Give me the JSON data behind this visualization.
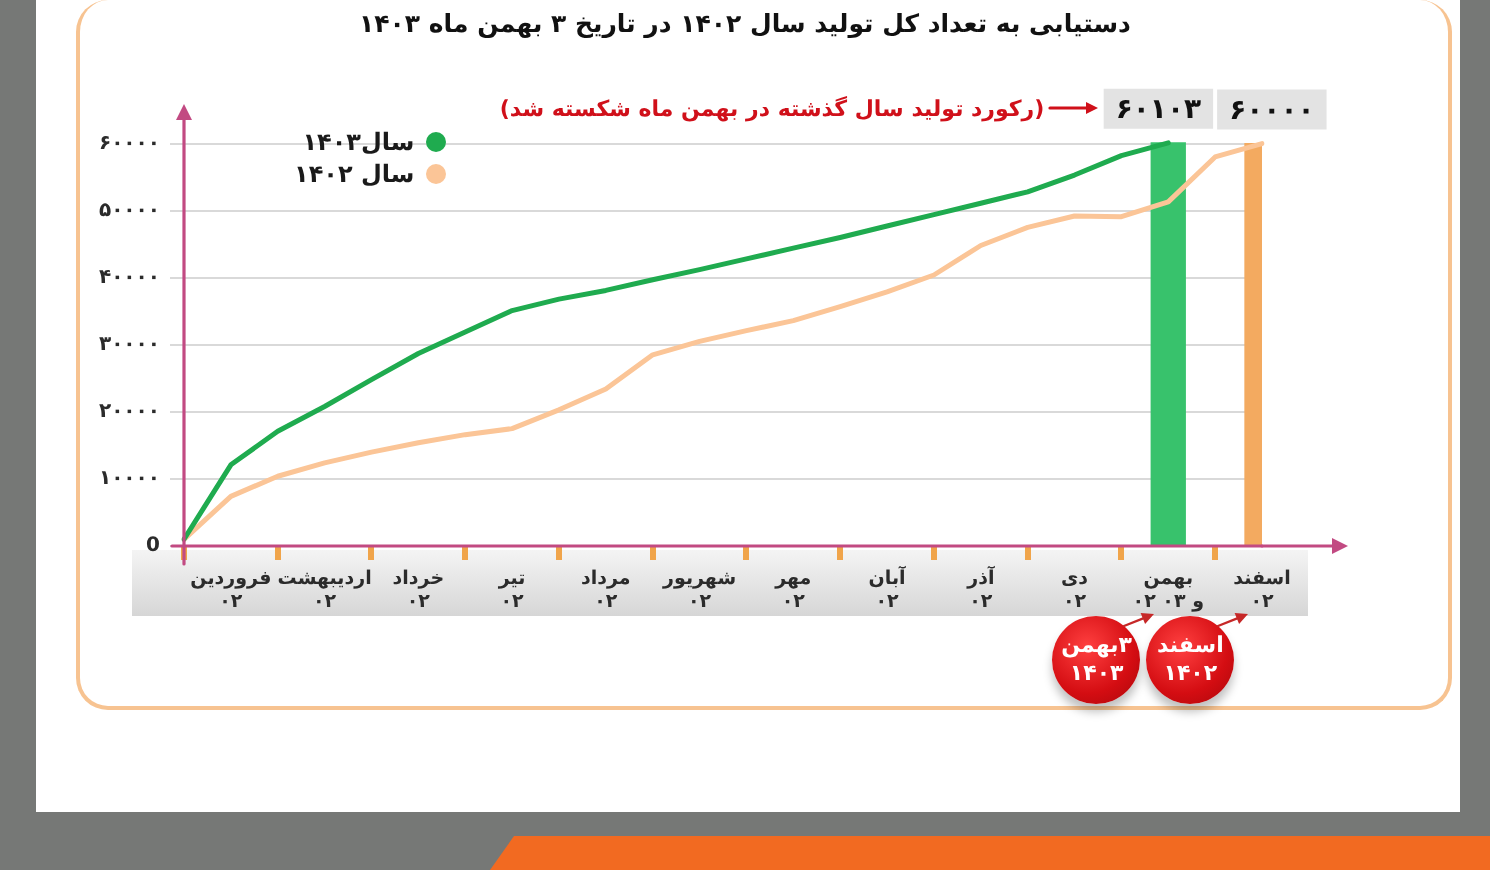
{
  "chart_data": {
    "type": "line",
    "title": "دستیابی به تعداد کل تولید سال ۱۴۰۲ در تاریخ ۳ بهمن ماه ۱۴۰۳",
    "categories": [
      null,
      "فروردین ۰۲",
      null,
      "اردیبهشت ۰۲",
      null,
      "خرداد ۰۲",
      null,
      "تیر ۰۲",
      null,
      "مرداد ۰۲",
      null,
      "شهریور ۰۲",
      null,
      "مهر ۰۲",
      null,
      "آبان ۰۲",
      null,
      "آذر ۰۲",
      null,
      "دی ۰۲",
      null,
      "بهمن ۰۲ و ۰۳",
      null,
      "اسفند ۰۲"
    ],
    "ylim": [
      0,
      65000
    ],
    "yticks": [
      0,
      {
        "value": 10000,
        "label": "۱۰۰۰۰"
      },
      {
        "value": 20000,
        "label": "۲۰۰۰۰"
      },
      {
        "value": 30000,
        "label": "۳۰۰۰۰"
      },
      {
        "value": 40000,
        "label": "۴۰۰۰۰"
      },
      {
        "value": 50000,
        "label": "۵۰۰۰۰"
      },
      {
        "value": 60000,
        "label": "۶۰۰۰۰"
      }
    ],
    "grid": "y",
    "legend": "top left",
    "series": [
      {
        "type": "bar",
        "color": "#38c26c",
        "values": [
          null,
          null,
          null,
          null,
          null,
          null,
          null,
          null,
          null,
          null,
          null,
          null,
          null,
          null,
          null,
          null,
          null,
          null,
          null,
          null,
          null,
          60103,
          null,
          null
        ],
        "value_labels": [
          null,
          null,
          null,
          null,
          null,
          null,
          null,
          null,
          null,
          null,
          null,
          null,
          null,
          null,
          null,
          null,
          null,
          null,
          null,
          null,
          null,
          "۶۰۱۰۳",
          null,
          null
        ]
      },
      {
        "type": "bar",
        "color": "#f3aa60",
        "values": [
          null,
          null,
          null,
          null,
          null,
          null,
          null,
          null,
          null,
          null,
          null,
          null,
          null,
          null,
          null,
          null,
          null,
          null,
          null,
          null,
          null,
          null,
          null,
          60000
        ],
        "value_labels": [
          null,
          null,
          null,
          null,
          null,
          null,
          null,
          null,
          null,
          null,
          null,
          null,
          null,
          null,
          null,
          null,
          null,
          null,
          null,
          null,
          null,
          null,
          null,
          "۶۰۰۰۰"
        ]
      },
      {
        "name": "سال۱۴۰۳",
        "color": "#1fab4f",
        "values": [
          1000,
          12100,
          17100,
          20800,
          24800,
          28700,
          31900,
          35100,
          36800,
          38100,
          39700,
          41200,
          42800,
          44400,
          46000,
          47700,
          49400,
          51100,
          52800,
          55300,
          58200,
          60103,
          null,
          null
        ]
      },
      {
        "name": "سال ۱۴۰۲",
        "color": "#fbc597",
        "values": [
          1000,
          7400,
          10400,
          12400,
          14000,
          15400,
          16600,
          17500,
          20300,
          23400,
          28500,
          30500,
          32100,
          33600,
          35700,
          37900,
          40400,
          44800,
          47500,
          49200,
          49100,
          51300,
          58000,
          60000
        ]
      }
    ],
    "annotations": [
      "(رکورد تولید سال گذشته در بهمن ماه شکسته شد)",
      "۳بهمن ۱۴۰۳",
      "اسفند ۱۴۰۲"
    ]
  }
}
